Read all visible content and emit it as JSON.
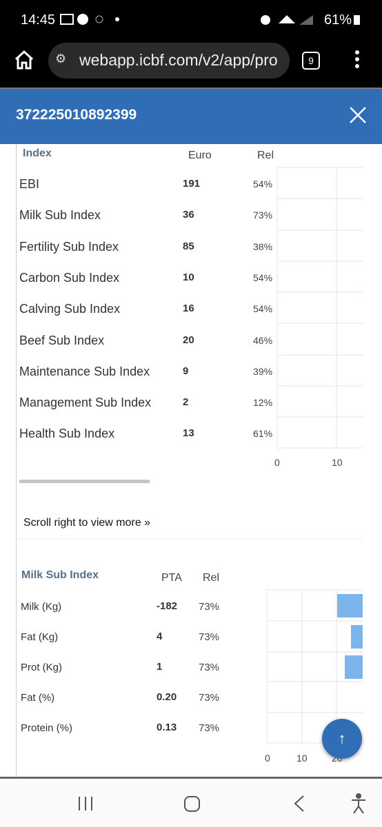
{
  "status_bar": {
    "time": "14:45",
    "battery": "61%"
  },
  "browser": {
    "url": "webapp.icbf.com/v2/app/pro",
    "tab_count": "9"
  },
  "header": {
    "title": "372225010892399"
  },
  "index_table": {
    "headers": [
      "Index",
      "Euro",
      "Rel"
    ],
    "rows": [
      [
        "EBI",
        "191",
        "54%"
      ],
      [
        "Milk Sub Index",
        "36",
        "73%"
      ],
      [
        "Fertility Sub Index",
        "85",
        "38%"
      ],
      [
        "Carbon Sub Index",
        "10",
        "54%"
      ],
      [
        "Calving Sub Index",
        "16",
        "54%"
      ],
      [
        "Beef Sub Index",
        "20",
        "46%"
      ],
      [
        "Maintenance Sub Index",
        "9",
        "39%"
      ],
      [
        "Management Sub Index",
        "2",
        "12%"
      ],
      [
        "Health Sub Index",
        "13",
        "61%"
      ]
    ],
    "axis_ticks": [
      "0",
      "10"
    ]
  },
  "scroll_hint": "Scroll right to view more »",
  "milk_table": {
    "headers": [
      "Milk Sub Index",
      "PTA",
      "Rel"
    ],
    "rows": [
      [
        "Milk (Kg)",
        "-182",
        "73%"
      ],
      [
        "Fat (Kg)",
        "4",
        "73%"
      ],
      [
        "Prot (Kg)",
        "1",
        "73%"
      ],
      [
        "Fat (%)",
        "0.20",
        "73%"
      ],
      [
        "Protein (%)",
        "0.13",
        "73%"
      ]
    ],
    "axis_ticks": [
      "0",
      "10",
      "20"
    ]
  }
}
